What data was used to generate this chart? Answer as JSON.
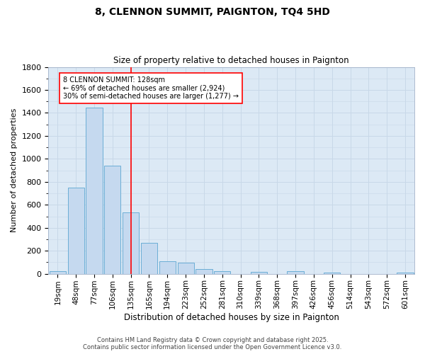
{
  "title": "8, CLENNON SUMMIT, PAIGNTON, TQ4 5HD",
  "subtitle": "Size of property relative to detached houses in Paignton",
  "xlabel": "Distribution of detached houses by size in Paignton",
  "ylabel": "Number of detached properties",
  "footer_line1": "Contains HM Land Registry data © Crown copyright and database right 2025.",
  "footer_line2": "Contains public sector information licensed under the Open Government Licence v3.0.",
  "bar_labels": [
    "19sqm",
    "48sqm",
    "77sqm",
    "106sqm",
    "135sqm",
    "165sqm",
    "194sqm",
    "223sqm",
    "252sqm",
    "281sqm",
    "310sqm",
    "339sqm",
    "368sqm",
    "397sqm",
    "426sqm",
    "456sqm",
    "514sqm",
    "543sqm",
    "572sqm",
    "601sqm"
  ],
  "bar_values": [
    22,
    750,
    1445,
    940,
    535,
    270,
    110,
    95,
    42,
    25,
    0,
    15,
    0,
    20,
    0,
    12,
    0,
    0,
    0,
    12
  ],
  "bar_color": "#c5d9ef",
  "bar_edgecolor": "#6baed6",
  "ylim": [
    0,
    1800
  ],
  "yticks": [
    0,
    200,
    400,
    600,
    800,
    1000,
    1200,
    1400,
    1600,
    1800
  ],
  "redline_x": 4.0,
  "annotation_line1": "8 CLENNON SUMMIT: 128sqm",
  "annotation_line2": "← 69% of detached houses are smaller (2,924)",
  "annotation_line3": "30% of semi-detached houses are larger (1,277) →",
  "grid_color": "#c8d8e8",
  "bg_color": "#dce9f5",
  "fig_bg_color": "#ffffff"
}
